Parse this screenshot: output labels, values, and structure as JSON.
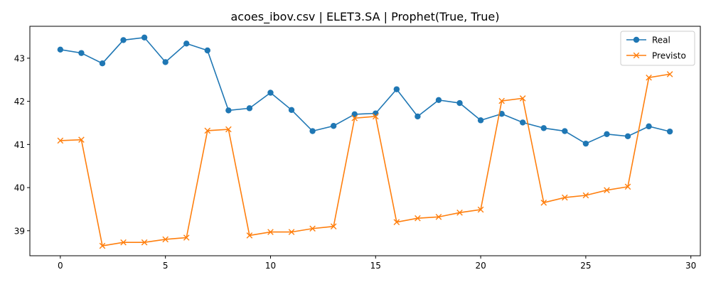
{
  "chart_data": {
    "type": "line",
    "title": "acoes_ibov.csv | ELET3.SA | Prophet(True, True)",
    "xlabel": "",
    "ylabel": "",
    "xlim": [
      -1.45,
      30.45
    ],
    "ylim": [
      38.42,
      43.74
    ],
    "x_ticks": [
      0,
      5,
      10,
      15,
      20,
      25,
      30
    ],
    "y_ticks": [
      39,
      40,
      41,
      42,
      43
    ],
    "grid": false,
    "legend_position": "top-right",
    "x": [
      0,
      1,
      2,
      3,
      4,
      5,
      6,
      7,
      8,
      9,
      10,
      11,
      12,
      13,
      14,
      15,
      16,
      17,
      18,
      19,
      20,
      21,
      22,
      23,
      24,
      25,
      26,
      27,
      28,
      29
    ],
    "series": [
      {
        "name": "Real",
        "color": "#1f77b4",
        "marker": "circle",
        "values": [
          43.2,
          43.12,
          42.88,
          43.42,
          43.48,
          42.91,
          43.34,
          43.18,
          41.79,
          41.84,
          42.2,
          41.8,
          41.31,
          41.43,
          41.7,
          41.72,
          42.28,
          41.65,
          42.03,
          41.96,
          41.56,
          41.71,
          41.51,
          41.38,
          41.31,
          41.02,
          41.24,
          41.19,
          41.42,
          41.3
        ]
      },
      {
        "name": "Previsto",
        "color": "#ff7f0e",
        "marker": "x",
        "values": [
          41.09,
          41.11,
          38.65,
          38.73,
          38.73,
          38.8,
          38.84,
          41.32,
          41.35,
          38.89,
          38.97,
          38.97,
          39.05,
          39.1,
          41.61,
          41.65,
          39.2,
          39.29,
          39.32,
          39.42,
          39.49,
          42.01,
          42.07,
          39.65,
          39.77,
          39.82,
          39.94,
          40.02,
          42.55,
          42.63
        ]
      }
    ]
  }
}
